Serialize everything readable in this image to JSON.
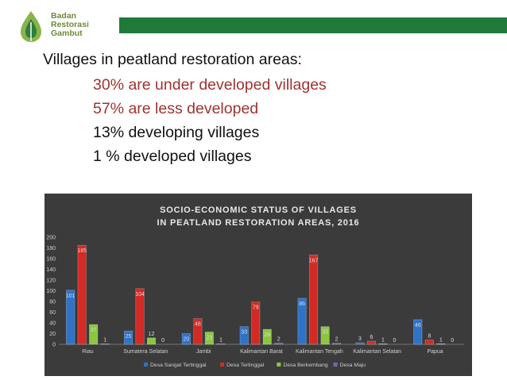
{
  "logo": {
    "lines": [
      "Badan",
      "Restorasi",
      "Gambut"
    ],
    "colors": {
      "text": "#6e8a3a",
      "bar": "#1f7a3a"
    }
  },
  "heading": "Villages in peatland restoration areas:",
  "bullets": [
    {
      "text": "30% are under developed villages",
      "color": "#a0332f"
    },
    {
      "text": "57%  are less developed",
      "color": "#a0332f"
    },
    {
      "text": "13% developing villages",
      "color": "#111111"
    },
    {
      "text": "1 % developed villages",
      "color": "#111111"
    }
  ],
  "chart_data": {
    "type": "bar",
    "title_lines": [
      "SOCIO-ECONOMIC STATUS OF VILLAGES",
      "IN PEATLAND RESTORATION AREAS, 2016"
    ],
    "categories": [
      "Riau",
      "Sumatera Selatan",
      "Jambi",
      "Kalimantan Barat",
      "Kalimantan Tengah",
      "Kalimantan Selatan",
      "Papua"
    ],
    "series": [
      {
        "name": "Desa Sangat Tertinggal",
        "color": "#2f73c9",
        "values": [
          101,
          25,
          20,
          33,
          86,
          3,
          46
        ]
      },
      {
        "name": "Desa Tertinggal",
        "color": "#d42a25",
        "values": [
          185,
          104,
          48,
          79,
          167,
          6,
          8
        ]
      },
      {
        "name": "Desa Berkembang",
        "color": "#8cc63f",
        "values": [
          37,
          12,
          23,
          28,
          33,
          1,
          1
        ]
      },
      {
        "name": "Desa Maju",
        "color": "#7f5fb5",
        "values": [
          1,
          0,
          1,
          2,
          2,
          0,
          0
        ]
      }
    ],
    "ylim": [
      0,
      200
    ],
    "yticks": [
      0,
      20,
      40,
      60,
      80,
      100,
      120,
      140,
      160,
      180,
      200
    ],
    "legend": "bottom",
    "grid": false
  }
}
